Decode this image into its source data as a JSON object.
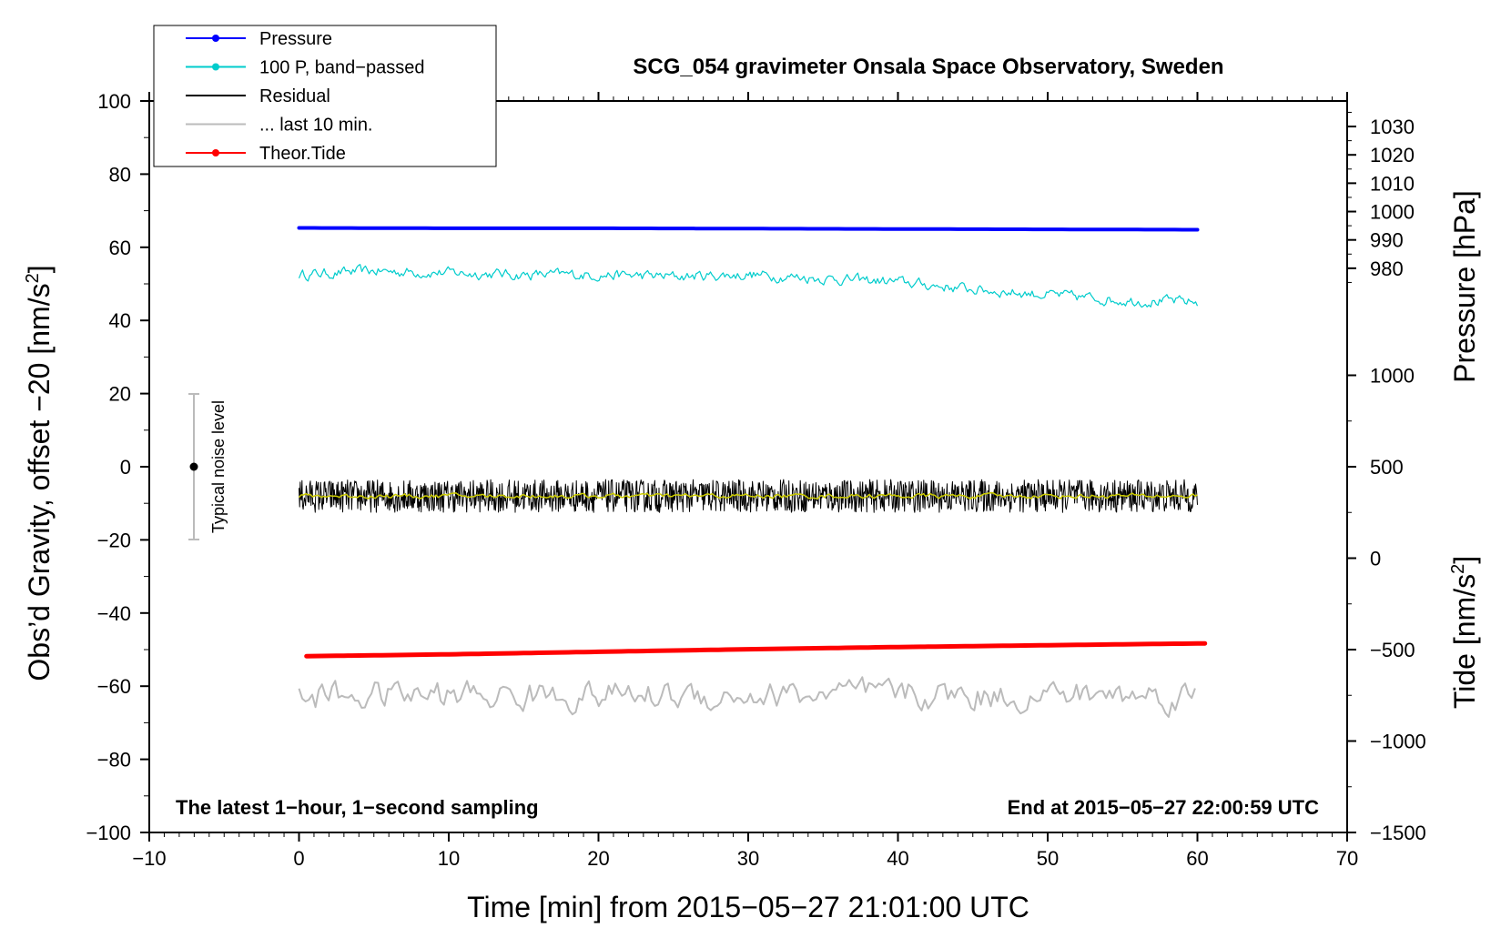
{
  "chart_data": {
    "type": "line",
    "title": "SCG_054 gravimeter Onsala Space Observatory, Sweden",
    "xlabel": "Time [min] from 2015−05−27 21:01:00 UTC",
    "ylabel_left": "Obs’d Gravity, offset −20 [nm/s",
    "ylabel_left_sup": "2",
    "ylabel_left_end": "]",
    "ylabel_pressure": "Pressure [hPa]",
    "ylabel_tide": "Tide [nm/s",
    "ylabel_tide_sup": "2",
    "ylabel_tide_end": "]",
    "xlim": [
      -10,
      70
    ],
    "ylim": [
      -100,
      100
    ],
    "x_ticks": [
      -10,
      0,
      10,
      20,
      30,
      40,
      50,
      60,
      70
    ],
    "x_tick_labels": [
      "−10",
      "0",
      "10",
      "20",
      "30",
      "40",
      "50",
      "60",
      "70"
    ],
    "y_ticks": [
      -100,
      -80,
      -60,
      -40,
      -20,
      0,
      20,
      40,
      60,
      80,
      100
    ],
    "y_tick_labels": [
      "−100",
      "−80",
      "−60",
      "−40",
      "−20",
      "0",
      "20",
      "40",
      "60",
      "80",
      "100"
    ],
    "pressure_axis": {
      "ticks": [
        980,
        990,
        1000,
        1010,
        1020,
        1030
      ],
      "tick_labels": [
        "980",
        "990",
        "1000",
        "1010",
        "1020",
        "1030"
      ],
      "map": {
        "hpa_at_0": 910,
        "hpa_at_100": 1039
      }
    },
    "tide_axis": {
      "ticks": [
        -1500,
        -1000,
        -500,
        0,
        500,
        1000
      ],
      "tick_labels": [
        "−1500",
        "−1000",
        "−500",
        "0",
        "500",
        "1000"
      ],
      "map": {
        "tide_at_min100": -1500,
        "tide_at_0": 500
      }
    },
    "grid": false,
    "legend_position": "top-left",
    "legend": [
      {
        "label": "Pressure",
        "color": "#0000ff",
        "marker": true
      },
      {
        "label": "100 P, band−passed",
        "color": "#00cccc",
        "marker": true
      },
      {
        "label": "Residual",
        "color": "#000000",
        "marker": false
      },
      {
        "label": "... last 10 min.",
        "color": "#bbbbbb",
        "marker": false
      },
      {
        "label": "Theor.Tide",
        "color": "#ff0000",
        "marker": true
      }
    ],
    "series": [
      {
        "name": "Pressure",
        "color": "#0000ff",
        "x": [
          0,
          10,
          20,
          30,
          40,
          50,
          60
        ],
        "y": [
          65.3,
          65.2,
          65.2,
          65.1,
          65.0,
          64.9,
          64.8
        ]
      },
      {
        "name": "100 P, band−passed",
        "color": "#00cccc",
        "x": [
          0,
          5,
          10,
          15,
          20,
          25,
          30,
          35,
          40,
          45,
          50,
          55,
          60
        ],
        "y": [
          52.5,
          53.5,
          53.0,
          52.5,
          52.5,
          52.0,
          52.5,
          51.5,
          50.5,
          48.5,
          47.0,
          45.5,
          45.0
        ],
        "amplitude": 1.6
      },
      {
        "name": "Residual",
        "color": "#000000",
        "x": [
          0,
          60
        ],
        "y": [
          -8,
          -8
        ],
        "amplitude": 4.5
      },
      {
        "name": "Residual smoothed",
        "color": "#cccc00",
        "x": [
          0,
          60
        ],
        "y": [
          -8,
          -8
        ],
        "amplitude": 0.7
      },
      {
        "name": "... last 10 min.",
        "color": "#bbbbbb",
        "x": [
          0,
          60
        ],
        "y": [
          -62.5,
          -62.5
        ],
        "amplitude": 4.5
      },
      {
        "name": "Theor.Tide",
        "color": "#ff0000",
        "x": [
          0.5,
          10,
          20,
          30,
          40,
          50,
          60.5
        ],
        "y": [
          -51.8,
          -51.3,
          -50.6,
          -49.9,
          -49.3,
          -48.8,
          -48.3
        ]
      }
    ],
    "noise_marker": {
      "x": -7,
      "y": 0,
      "ylow": -20,
      "yhigh": 20,
      "label": "Typical noise level"
    },
    "annotations": {
      "left": "The latest 1−hour, 1−second sampling",
      "right": "End at 2015−05−27 22:00:59 UTC"
    }
  }
}
